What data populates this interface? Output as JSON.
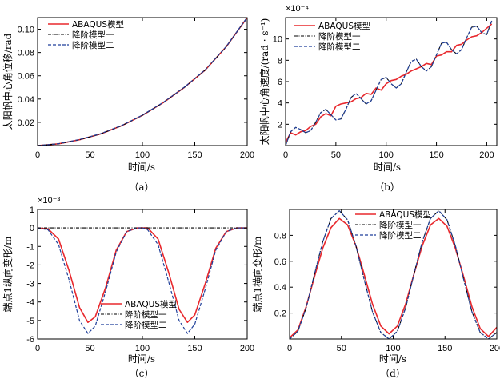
{
  "colors": {
    "abaqus": "#e8282d",
    "model1": "#000000",
    "model2": "#1f3f9a"
  },
  "chart_data": [
    {
      "type": "line",
      "caption": "（a）",
      "xlabel": "时间/s",
      "ylabel": "太阳帆中心角位移/rad",
      "xlim": [
        0,
        200
      ],
      "ylim": [
        0,
        0.11
      ],
      "xticks": [
        0,
        50,
        100,
        150,
        200
      ],
      "xtick_labels": [
        "0",
        "50",
        "100",
        "150",
        "200"
      ],
      "yticks": [
        0.02,
        0.04,
        0.06,
        0.08,
        0.1
      ],
      "ytick_labels": [
        "0.02",
        "0.04",
        "0.06",
        "0.08",
        "0.10"
      ],
      "exponent": "",
      "legend_position": "top-left",
      "x": [
        0,
        20,
        40,
        60,
        80,
        100,
        120,
        140,
        160,
        180,
        200
      ],
      "series": [
        {
          "name": "ABAQUS模型",
          "values": [
            0,
            0.0015,
            0.005,
            0.01,
            0.017,
            0.026,
            0.037,
            0.05,
            0.065,
            0.085,
            0.11
          ]
        },
        {
          "name": "降阶模型一",
          "values": [
            0,
            0.0015,
            0.005,
            0.01,
            0.017,
            0.026,
            0.037,
            0.05,
            0.065,
            0.085,
            0.11
          ]
        },
        {
          "name": "降阶模型二",
          "values": [
            0,
            0.0016,
            0.0052,
            0.0102,
            0.0172,
            0.0262,
            0.0372,
            0.0502,
            0.0652,
            0.0852,
            0.1102
          ]
        }
      ]
    },
    {
      "type": "line",
      "caption": "（b）",
      "xlabel": "时间/s",
      "ylabel": "太阳帆中心角速度/(rad · s⁻¹)",
      "xlim": [
        0,
        210
      ],
      "ylim": [
        0,
        12
      ],
      "xticks": [
        0,
        50,
        100,
        150,
        200
      ],
      "xtick_labels": [
        "0",
        "50",
        "100",
        "150",
        "200"
      ],
      "yticks": [
        2,
        4,
        6,
        8,
        10
      ],
      "ytick_labels": [
        "2",
        "4",
        "6",
        "8",
        "10"
      ],
      "exponent": "×10⁻⁴",
      "legend_position": "top-right",
      "x": [
        0,
        5,
        10,
        15,
        20,
        25,
        30,
        35,
        40,
        45,
        50,
        55,
        60,
        65,
        70,
        75,
        80,
        85,
        90,
        95,
        100,
        105,
        110,
        115,
        120,
        125,
        130,
        135,
        140,
        145,
        150,
        155,
        160,
        165,
        170,
        175,
        180,
        185,
        190,
        195,
        200,
        205
      ],
      "series": [
        {
          "name": "ABAQUS模型",
          "values": [
            0.3,
            1.2,
            1.0,
            1.3,
            1.4,
            1.8,
            2.0,
            2.7,
            3.0,
            2.8,
            3.7,
            3.9,
            4.0,
            4.1,
            4.4,
            4.5,
            4.9,
            4.8,
            5.4,
            5.2,
            5.8,
            6.1,
            6.2,
            6.5,
            6.7,
            7.0,
            7.2,
            7.4,
            7.7,
            7.6,
            8.4,
            8.5,
            8.8,
            8.8,
            9.4,
            9.5,
            9.9,
            10.2,
            10.3,
            10.6,
            11.0,
            11.4
          ]
        },
        {
          "name": "降阶模型一",
          "values": [
            0.0,
            1.3,
            1.7,
            1.5,
            1.2,
            1.4,
            2.2,
            3.1,
            3.4,
            2.9,
            2.4,
            2.5,
            3.4,
            4.5,
            4.9,
            4.4,
            3.9,
            4.2,
            5.2,
            6.2,
            6.4,
            5.8,
            5.4,
            5.8,
            6.9,
            7.9,
            8.1,
            7.4,
            7.0,
            7.4,
            8.5,
            9.6,
            9.7,
            9.0,
            8.6,
            9.0,
            10.1,
            11.1,
            11.2,
            10.6,
            10.4,
            11.7
          ]
        },
        {
          "name": "降阶模型二",
          "values": [
            0.0,
            1.3,
            1.7,
            1.5,
            1.2,
            1.4,
            2.2,
            3.1,
            3.4,
            2.9,
            2.4,
            2.5,
            3.4,
            4.5,
            4.9,
            4.4,
            3.9,
            4.2,
            5.2,
            6.2,
            6.4,
            5.8,
            5.4,
            5.8,
            6.9,
            7.9,
            8.1,
            7.4,
            7.0,
            7.4,
            8.5,
            9.6,
            9.7,
            9.0,
            8.6,
            9.0,
            10.1,
            11.1,
            11.2,
            10.6,
            10.4,
            11.7
          ]
        }
      ]
    },
    {
      "type": "line",
      "caption": "（c）",
      "xlabel": "时间/s",
      "ylabel": "端点1纵向变形/m",
      "xlim": [
        0,
        200
      ],
      "ylim": [
        -6,
        1
      ],
      "xticks": [
        0,
        50,
        100,
        150,
        200
      ],
      "xtick_labels": [
        "0",
        "50",
        "100",
        "150",
        "200"
      ],
      "yticks": [
        -6,
        -5,
        -4,
        -3,
        -2,
        -1,
        0,
        1
      ],
      "ytick_labels": [
        "-6",
        "-5",
        "-4",
        "-3",
        "-2",
        "-1",
        "0",
        "1"
      ],
      "exponent": "×10⁻³",
      "legend_position": "bottom-center",
      "x": [
        0,
        10,
        20,
        30,
        40,
        48,
        55,
        65,
        75,
        85,
        95,
        100,
        105,
        115,
        125,
        135,
        143,
        150,
        160,
        170,
        180,
        190,
        200
      ],
      "series": [
        {
          "name": "ABAQUS模型",
          "values": [
            0,
            -0.05,
            -0.6,
            -2.3,
            -4.3,
            -5.1,
            -4.8,
            -3.2,
            -1.2,
            -0.2,
            0,
            0,
            0,
            -0.6,
            -2.4,
            -4.4,
            -5.1,
            -4.7,
            -3.0,
            -1.1,
            -0.2,
            0,
            0
          ]
        },
        {
          "name": "降阶模型一",
          "values": [
            0,
            0,
            0,
            0,
            0,
            0,
            0,
            0,
            0,
            0,
            0,
            0,
            0,
            0,
            0,
            0,
            0,
            0,
            0,
            0,
            0,
            0,
            0
          ]
        },
        {
          "name": "降阶模型二",
          "values": [
            0,
            -0.1,
            -0.9,
            -2.8,
            -5.0,
            -5.7,
            -5.3,
            -3.4,
            -1.3,
            -0.2,
            0,
            0,
            -0.1,
            -0.9,
            -2.9,
            -5.0,
            -5.7,
            -5.2,
            -3.3,
            -1.2,
            -0.2,
            0,
            0
          ]
        }
      ]
    },
    {
      "type": "line",
      "caption": "（d）",
      "xlabel": "时间/s",
      "ylabel": "端点1横向变形/m",
      "xlim": [
        0,
        200
      ],
      "ylim": [
        0,
        1
      ],
      "xticks": [
        0,
        50,
        100,
        150,
        200
      ],
      "xtick_labels": [
        "0",
        "50",
        "100",
        "150",
        "200"
      ],
      "yticks": [
        0.2,
        0.4,
        0.6,
        0.8
      ],
      "ytick_labels": [
        "0.2",
        "0.4",
        "0.6",
        "0.8"
      ],
      "exponent": "",
      "legend_position": "top-right",
      "x": [
        0,
        8,
        16,
        24,
        32,
        40,
        48,
        56,
        64,
        72,
        80,
        88,
        96,
        104,
        112,
        120,
        128,
        136,
        144,
        152,
        160,
        168,
        176,
        184,
        192,
        200
      ],
      "series": [
        {
          "name": "ABAQUS模型",
          "values": [
            0.01,
            0.07,
            0.25,
            0.48,
            0.7,
            0.86,
            0.93,
            0.88,
            0.72,
            0.5,
            0.27,
            0.1,
            0.04,
            0.1,
            0.27,
            0.5,
            0.72,
            0.88,
            0.93,
            0.87,
            0.7,
            0.48,
            0.25,
            0.08,
            0.02,
            0.09
          ]
        },
        {
          "name": "降阶模型一",
          "values": [
            0.0,
            0.06,
            0.24,
            0.5,
            0.75,
            0.93,
            0.99,
            0.92,
            0.72,
            0.46,
            0.21,
            0.05,
            0.0,
            0.06,
            0.24,
            0.5,
            0.75,
            0.93,
            0.99,
            0.92,
            0.72,
            0.46,
            0.21,
            0.05,
            0.0,
            0.05
          ]
        },
        {
          "name": "降阶模型二",
          "values": [
            0.0,
            0.06,
            0.24,
            0.5,
            0.75,
            0.93,
            0.99,
            0.92,
            0.72,
            0.46,
            0.21,
            0.05,
            0.0,
            0.06,
            0.24,
            0.5,
            0.75,
            0.93,
            0.99,
            0.92,
            0.72,
            0.46,
            0.21,
            0.05,
            0.0,
            0.05
          ]
        }
      ]
    }
  ]
}
